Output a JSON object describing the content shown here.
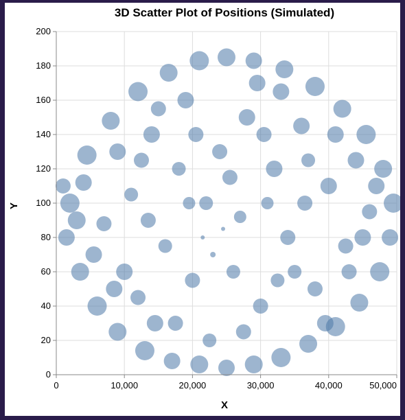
{
  "chart_data": {
    "type": "scatter",
    "title": "3D Scatter Plot of Positions (Simulated)",
    "xlabel": "X",
    "ylabel": "Y",
    "xlim": [
      0,
      50000
    ],
    "ylim": [
      0,
      200
    ],
    "xticks": [
      0,
      10000,
      20000,
      30000,
      40000,
      50000
    ],
    "xtick_labels": [
      "0",
      "10,000",
      "20,000",
      "30,000",
      "40,000",
      "50,000"
    ],
    "yticks": [
      0,
      20,
      40,
      60,
      80,
      100,
      120,
      140,
      160,
      180,
      200
    ],
    "ytick_labels": [
      "0",
      "20",
      "40",
      "60",
      "80",
      "100",
      "120",
      "140",
      "160",
      "180",
      "200"
    ],
    "grid": true,
    "point_color": "#4c78a8",
    "point_opacity": 0.55,
    "distribution": "points fill a disc centered near (25000, 93) spanning x 0–50000 and y 0–186, denser toward the rim",
    "points": [
      {
        "x": 2000,
        "y": 100,
        "size": 14
      },
      {
        "x": 1500,
        "y": 80,
        "size": 12
      },
      {
        "x": 3500,
        "y": 60,
        "size": 13
      },
      {
        "x": 6000,
        "y": 40,
        "size": 14
      },
      {
        "x": 9000,
        "y": 25,
        "size": 13
      },
      {
        "x": 13000,
        "y": 14,
        "size": 14
      },
      {
        "x": 17000,
        "y": 8,
        "size": 12
      },
      {
        "x": 21000,
        "y": 6,
        "size": 13
      },
      {
        "x": 25000,
        "y": 4,
        "size": 12
      },
      {
        "x": 29000,
        "y": 6,
        "size": 13
      },
      {
        "x": 33000,
        "y": 10,
        "size": 14
      },
      {
        "x": 37000,
        "y": 18,
        "size": 13
      },
      {
        "x": 41000,
        "y": 28,
        "size": 14
      },
      {
        "x": 44500,
        "y": 42,
        "size": 13
      },
      {
        "x": 47500,
        "y": 60,
        "size": 14
      },
      {
        "x": 49000,
        "y": 80,
        "size": 12
      },
      {
        "x": 49500,
        "y": 100,
        "size": 14
      },
      {
        "x": 48000,
        "y": 120,
        "size": 13
      },
      {
        "x": 45500,
        "y": 140,
        "size": 14
      },
      {
        "x": 42000,
        "y": 155,
        "size": 13
      },
      {
        "x": 38000,
        "y": 168,
        "size": 14
      },
      {
        "x": 33500,
        "y": 178,
        "size": 13
      },
      {
        "x": 29000,
        "y": 183,
        "size": 12
      },
      {
        "x": 25000,
        "y": 185,
        "size": 13
      },
      {
        "x": 21000,
        "y": 183,
        "size": 14
      },
      {
        "x": 16500,
        "y": 176,
        "size": 13
      },
      {
        "x": 12000,
        "y": 165,
        "size": 14
      },
      {
        "x": 8000,
        "y": 148,
        "size": 13
      },
      {
        "x": 4500,
        "y": 128,
        "size": 14
      },
      {
        "x": 1000,
        "y": 110,
        "size": 11
      },
      {
        "x": 4000,
        "y": 112,
        "size": 12
      },
      {
        "x": 7000,
        "y": 88,
        "size": 11
      },
      {
        "x": 9000,
        "y": 130,
        "size": 12
      },
      {
        "x": 12000,
        "y": 45,
        "size": 11
      },
      {
        "x": 14000,
        "y": 140,
        "size": 12
      },
      {
        "x": 17500,
        "y": 30,
        "size": 11
      },
      {
        "x": 19000,
        "y": 160,
        "size": 12
      },
      {
        "x": 22000,
        "y": 100,
        "size": 10
      },
      {
        "x": 24000,
        "y": 130,
        "size": 11
      },
      {
        "x": 26000,
        "y": 60,
        "size": 10
      },
      {
        "x": 28000,
        "y": 150,
        "size": 12
      },
      {
        "x": 30000,
        "y": 40,
        "size": 11
      },
      {
        "x": 32000,
        "y": 120,
        "size": 12
      },
      {
        "x": 34000,
        "y": 80,
        "size": 11
      },
      {
        "x": 36000,
        "y": 145,
        "size": 12
      },
      {
        "x": 38000,
        "y": 50,
        "size": 11
      },
      {
        "x": 40000,
        "y": 110,
        "size": 12
      },
      {
        "x": 42500,
        "y": 75,
        "size": 11
      },
      {
        "x": 44000,
        "y": 125,
        "size": 12
      },
      {
        "x": 46000,
        "y": 95,
        "size": 11
      },
      {
        "x": 16000,
        "y": 75,
        "size": 10
      },
      {
        "x": 20000,
        "y": 55,
        "size": 11
      },
      {
        "x": 27000,
        "y": 92,
        "size": 9
      },
      {
        "x": 23000,
        "y": 70,
        "size": 4
      },
      {
        "x": 24500,
        "y": 85,
        "size": 3
      },
      {
        "x": 21500,
        "y": 80,
        "size": 3
      },
      {
        "x": 31000,
        "y": 100,
        "size": 9
      },
      {
        "x": 35000,
        "y": 60,
        "size": 10
      },
      {
        "x": 11000,
        "y": 105,
        "size": 10
      },
      {
        "x": 13500,
        "y": 90,
        "size": 11
      },
      {
        "x": 18000,
        "y": 120,
        "size": 10
      },
      {
        "x": 29500,
        "y": 170,
        "size": 12
      },
      {
        "x": 22500,
        "y": 20,
        "size": 10
      },
      {
        "x": 39500,
        "y": 30,
        "size": 12
      },
      {
        "x": 5500,
        "y": 70,
        "size": 12
      },
      {
        "x": 43000,
        "y": 60,
        "size": 11
      },
      {
        "x": 10000,
        "y": 60,
        "size": 12
      },
      {
        "x": 15000,
        "y": 155,
        "size": 11
      },
      {
        "x": 33000,
        "y": 165,
        "size": 12
      },
      {
        "x": 27500,
        "y": 25,
        "size": 11
      },
      {
        "x": 47000,
        "y": 110,
        "size": 12
      },
      {
        "x": 3000,
        "y": 90,
        "size": 13
      },
      {
        "x": 20500,
        "y": 140,
        "size": 11
      },
      {
        "x": 36500,
        "y": 100,
        "size": 11
      },
      {
        "x": 25500,
        "y": 115,
        "size": 11
      },
      {
        "x": 14500,
        "y": 30,
        "size": 12
      },
      {
        "x": 41000,
        "y": 140,
        "size": 12
      },
      {
        "x": 8500,
        "y": 50,
        "size": 12
      },
      {
        "x": 45000,
        "y": 80,
        "size": 12
      },
      {
        "x": 30500,
        "y": 140,
        "size": 11
      },
      {
        "x": 19500,
        "y": 100,
        "size": 9
      },
      {
        "x": 37000,
        "y": 125,
        "size": 10
      },
      {
        "x": 12500,
        "y": 125,
        "size": 11
      },
      {
        "x": 32500,
        "y": 55,
        "size": 10
      }
    ]
  }
}
